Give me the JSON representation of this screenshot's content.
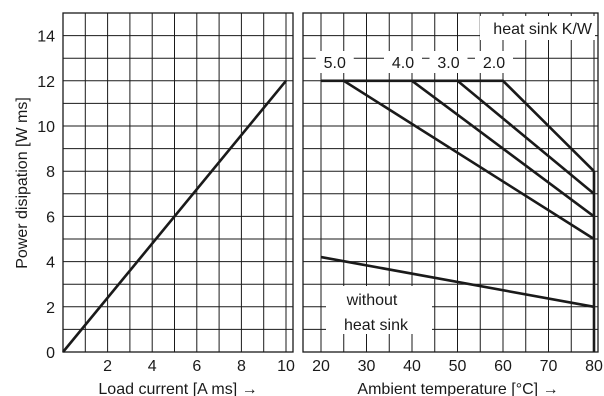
{
  "chart_data": [
    {
      "type": "line",
      "title": "",
      "xlabel": "Load current [A ms] →",
      "ylabel": "Power disipation [W ms]",
      "xlim": [
        0,
        10.5
      ],
      "ylim": [
        0,
        15
      ],
      "xticks": [
        2,
        4,
        6,
        8,
        10
      ],
      "yticks": [
        0,
        2,
        4,
        6,
        8,
        10,
        12,
        14
      ],
      "grid": true,
      "series": [
        {
          "x": [
            0,
            10
          ],
          "y": [
            0,
            12
          ]
        }
      ]
    },
    {
      "type": "line",
      "title": "",
      "xlabel": "Ambient temperature [°C] →",
      "ylabel": "",
      "xlim": [
        20,
        82
      ],
      "ylim": [
        0,
        15
      ],
      "xticks": [
        20,
        30,
        40,
        50,
        60,
        70,
        80
      ],
      "grid": true,
      "legend_title": "heat sink K/W",
      "series": [
        {
          "name": "5.0",
          "x": [
            20,
            25,
            80
          ],
          "y": [
            12,
            12,
            5
          ]
        },
        {
          "name": "4.0",
          "x": [
            25,
            40,
            80
          ],
          "y": [
            12,
            12,
            6
          ]
        },
        {
          "name": "3.0",
          "x": [
            40,
            50,
            80
          ],
          "y": [
            12,
            12,
            7
          ]
        },
        {
          "name": "2.0",
          "x": [
            50,
            60,
            80
          ],
          "y": [
            12,
            12,
            8
          ]
        },
        {
          "name": "without heat sink",
          "x": [
            20,
            80
          ],
          "y": [
            4.2,
            2
          ]
        },
        {
          "name": "",
          "x": [
            80,
            80
          ],
          "y": [
            0,
            8
          ]
        }
      ],
      "series_labels": [
        "5.0",
        "4.0",
        "3.0",
        "2.0"
      ],
      "annotation_lines": [
        "without",
        "heat sink"
      ]
    }
  ]
}
